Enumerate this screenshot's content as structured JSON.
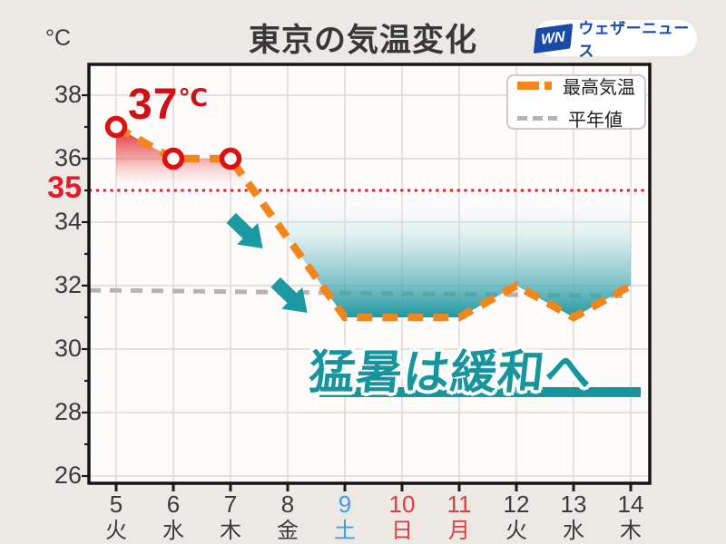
{
  "header": {
    "unit": "°C",
    "title": "東京の気温変化",
    "logo": {
      "mark": "WN",
      "name": "ウェザーニュース",
      "color": "#1A4AA8"
    }
  },
  "legend": {
    "items": [
      {
        "label": "最高気温",
        "color": "#F2861B"
      },
      {
        "label": "平年値",
        "color": "#B6B3B1"
      }
    ]
  },
  "annotations": {
    "peak": {
      "number": "37",
      "unit": "℃"
    },
    "message": "猛暑は緩和へ",
    "arrow_icon_color": "#1B9AA1"
  },
  "chart_data": {
    "type": "line",
    "title": "東京の気温変化",
    "ylabel": "°C",
    "x": [
      5,
      6,
      7,
      8,
      9,
      10,
      11,
      12,
      13,
      14
    ],
    "x_weekdays": [
      "火",
      "水",
      "木",
      "金",
      "土",
      "日",
      "月",
      "火",
      "水",
      "木"
    ],
    "x_label_colors": [
      "#3B3B3B",
      "#3B3B3B",
      "#3B3B3B",
      "#3B3B3B",
      "#3D9BE9",
      "#E03E3E",
      "#E03E3E",
      "#3B3B3B",
      "#3B3B3B",
      "#3B3B3B"
    ],
    "yticks": [
      26,
      28,
      30,
      32,
      34,
      36,
      38
    ],
    "ylim": [
      25.8,
      39.2
    ],
    "grid": true,
    "legend_position": "top-right",
    "series": [
      {
        "name": "最高気温",
        "color": "#F2861B",
        "style": "dashed-thick",
        "values": [
          37,
          36,
          36,
          33.5,
          31,
          31,
          31,
          32,
          31,
          32
        ],
        "marker_days": [
          5,
          6,
          7
        ],
        "marker_color": "#DD1111"
      },
      {
        "name": "平年値",
        "color": "#B6B3B1",
        "style": "dashed",
        "values": [
          31.85,
          31.83,
          31.81,
          31.79,
          31.77,
          31.75,
          31.73,
          31.71,
          31.69,
          31.67
        ]
      }
    ],
    "threshold": {
      "value": 35,
      "label": "35",
      "color": "#E8192C"
    },
    "fills": [
      {
        "name": "hot-red-fill",
        "x_range": [
          5,
          7.4
        ],
        "color": "#E0141E"
      },
      {
        "name": "cool-teal-fill",
        "x_range": [
          7.4,
          14
        ],
        "color": "#13929B"
      }
    ]
  }
}
